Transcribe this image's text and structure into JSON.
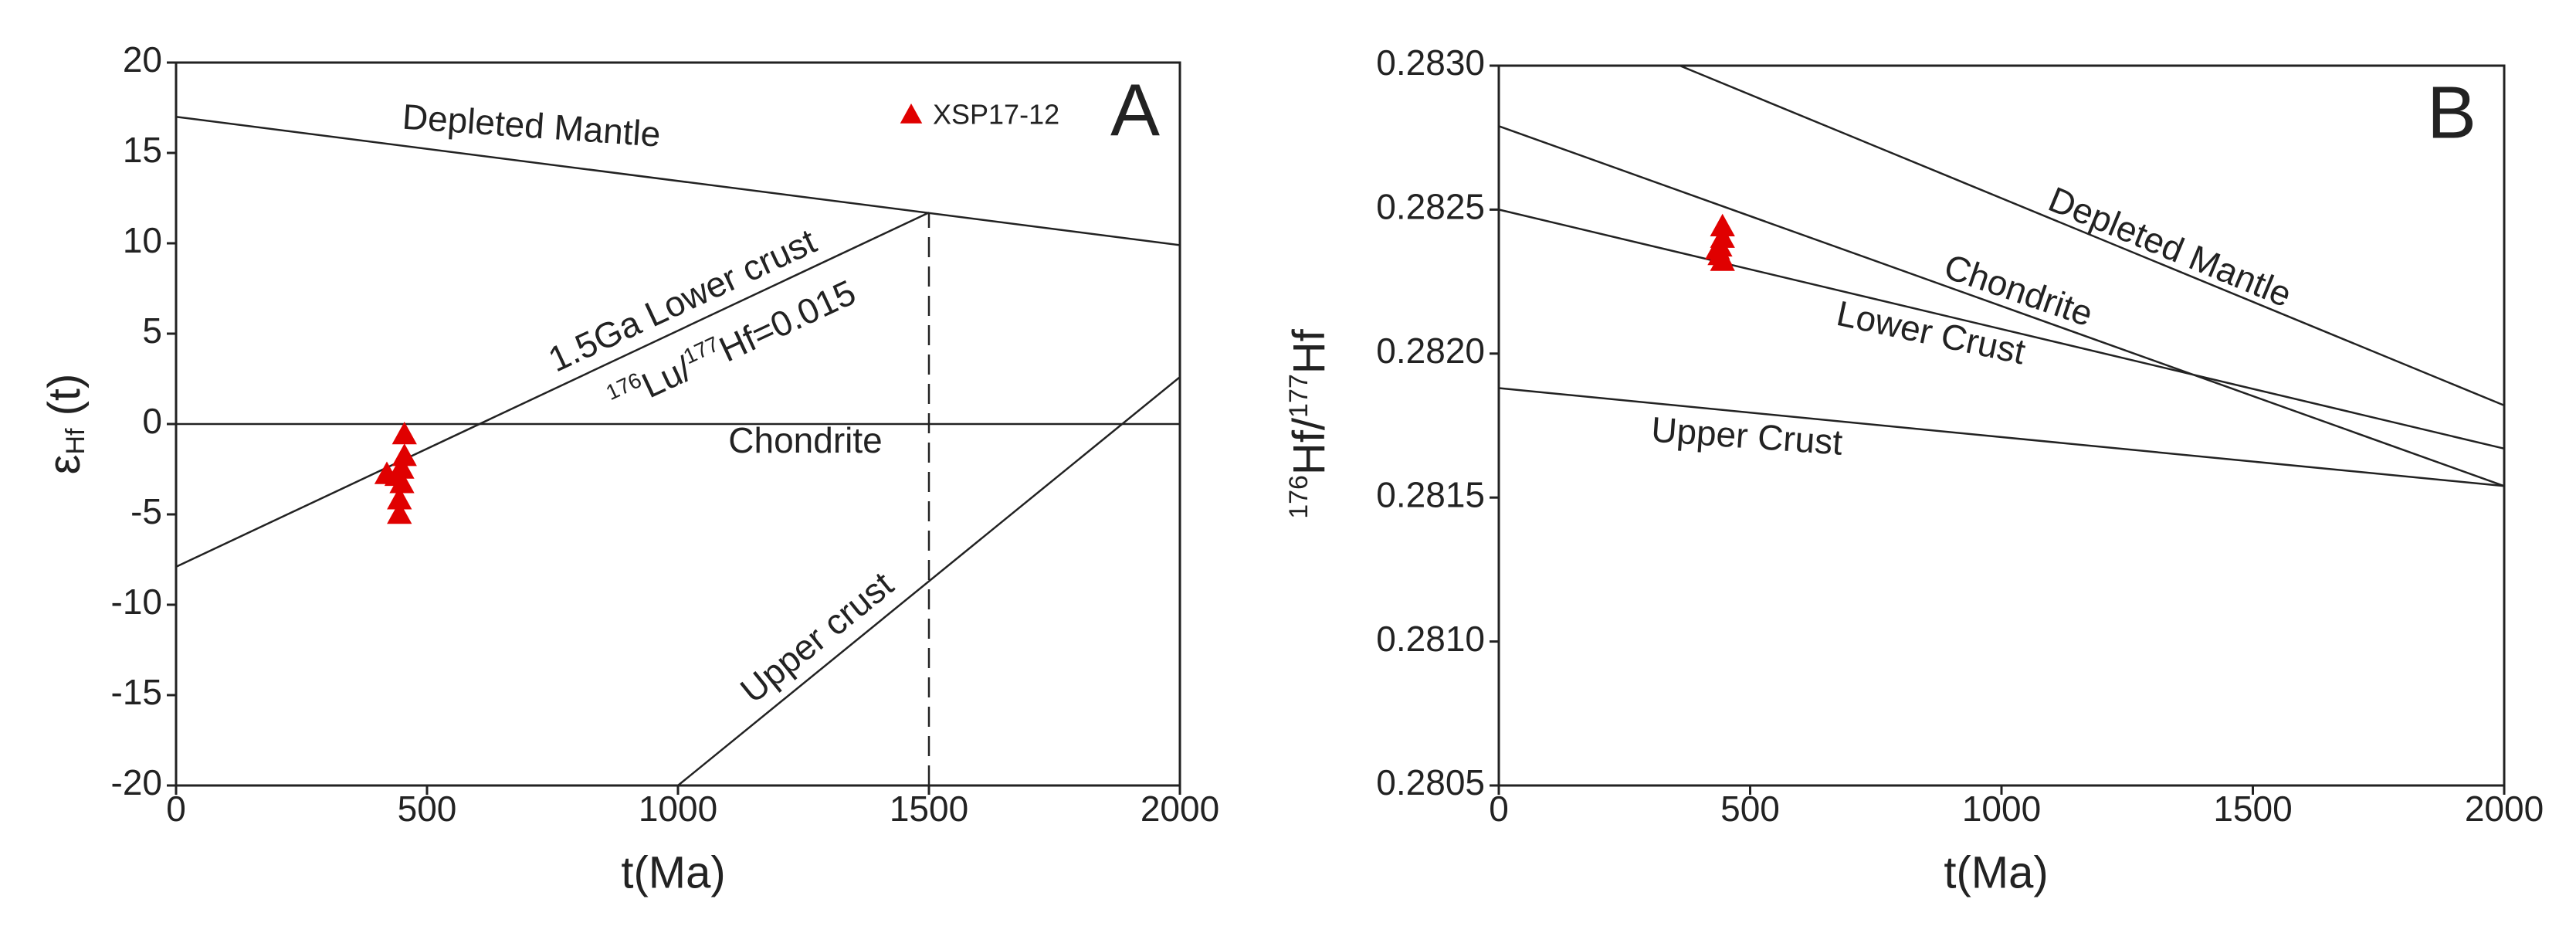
{
  "chart_data": [
    {
      "type": "scatter",
      "panel_label": "A",
      "xlabel": "t(Ma)",
      "ylabel_parts": [
        "ε",
        "Hf",
        " (t)"
      ],
      "xlim": [
        0,
        2000
      ],
      "ylim": [
        -20,
        20
      ],
      "xticks": [
        0,
        500,
        1000,
        1500,
        2000
      ],
      "yticks": [
        -20,
        -15,
        -10,
        -5,
        0,
        5,
        10,
        15,
        20
      ],
      "legend": "upper right",
      "annotations": [
        "Depleted Mantle",
        "1.5Ga Lower crust",
        "Chondrite",
        "Upper crust"
      ],
      "ratio_label_parts": [
        "176",
        "Lu/",
        "177",
        "Hf=0.015"
      ],
      "series": [
        {
          "kind": "line",
          "color": "#222222",
          "x": [
            0,
            2000
          ],
          "y": [
            17,
            9.9
          ]
        },
        {
          "kind": "line",
          "color": "#222222",
          "x": [
            0,
            2000
          ],
          "y": [
            0,
            0
          ]
        },
        {
          "kind": "line",
          "color": "#222222",
          "x": [
            0,
            1500
          ],
          "y": [
            -7.9,
            11.7
          ]
        },
        {
          "kind": "line",
          "color": "#222222",
          "x": [
            1000,
            2000
          ],
          "y": [
            -20,
            2.6
          ]
        },
        {
          "kind": "line",
          "color": "#222222",
          "dash": true,
          "x": [
            1500,
            1500
          ],
          "y": [
            -20,
            11.7
          ]
        },
        {
          "kind": "points",
          "name": "XSP17-12",
          "color": "#e00000",
          "x": [
            455,
            455,
            450,
            450,
            445,
            445,
            420,
            440
          ],
          "y": [
            -0.6,
            -1.8,
            -2.5,
            -3.3,
            -4.2,
            -5,
            -2.8,
            -2.9
          ]
        }
      ]
    },
    {
      "type": "scatter",
      "panel_label": "B",
      "xlabel": "t(Ma)",
      "ylabel_parts": [
        "176",
        "Hf/",
        "177",
        "Hf"
      ],
      "xlim": [
        0,
        2000
      ],
      "ylim": [
        0.2805,
        0.283
      ],
      "xticks": [
        0,
        500,
        1000,
        1500,
        2000
      ],
      "yticks": [
        0.2805,
        {
          "value": 0.281,
          "label": "0.2810"
        },
        0.2815,
        {
          "value": 0.282,
          "label": "0.2820"
        },
        0.2825,
        {
          "value": 0.283,
          "label": "0.2830"
        }
      ],
      "annotations": [
        "Depleted Mantle",
        "Chondrite",
        "Lower Crust",
        "Upper Crust"
      ],
      "series": [
        {
          "kind": "line",
          "color": "#222222",
          "x": [
            360,
            2000
          ],
          "y": [
            0.283,
            0.28182
          ]
        },
        {
          "kind": "line",
          "color": "#222222",
          "x": [
            0,
            2000
          ],
          "y": [
            0.28279,
            0.28154
          ]
        },
        {
          "kind": "line",
          "color": "#222222",
          "x": [
            0,
            2000
          ],
          "y": [
            0.2825,
            0.28167
          ]
        },
        {
          "kind": "line",
          "color": "#222222",
          "x": [
            0,
            2000
          ],
          "y": [
            0.28188,
            0.28154
          ]
        },
        {
          "kind": "points",
          "color": "#e00000",
          "x": [
            445,
            445,
            440,
            440,
            435,
            445
          ],
          "y": [
            0.28244,
            0.2824,
            0.28237,
            0.28234,
            0.28236,
            0.28232
          ]
        }
      ]
    }
  ]
}
